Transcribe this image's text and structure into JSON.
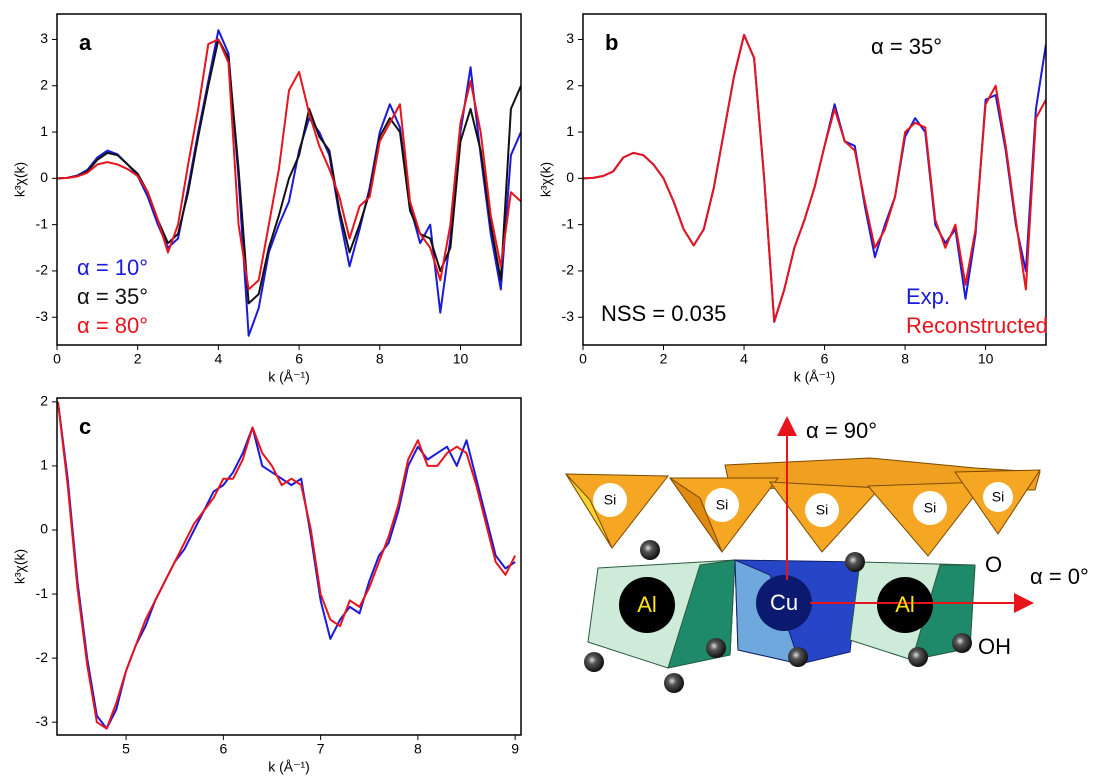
{
  "chart_data": [
    {
      "type": "line",
      "panel_label": "a",
      "y_label": "k³χ(k)",
      "x_label": "k (Å⁻¹)",
      "x": [
        0,
        0.25,
        0.5,
        0.75,
        1,
        1.25,
        1.5,
        1.75,
        2,
        2.25,
        2.5,
        2.75,
        3,
        3.25,
        3.5,
        3.75,
        4,
        4.25,
        4.5,
        4.75,
        5,
        5.25,
        5.5,
        5.75,
        6,
        6.25,
        6.5,
        6.75,
        7,
        7.25,
        7.5,
        7.75,
        8,
        8.25,
        8.5,
        8.75,
        9,
        9.25,
        9.5,
        9.75,
        10,
        10.25,
        10.5,
        10.75,
        11,
        11.25,
        11.5
      ],
      "series": [
        {
          "name": "α = 10°",
          "color": "#1a1adb",
          "values": [
            0,
            0.01,
            0.06,
            0.18,
            0.45,
            0.6,
            0.52,
            0.3,
            0.05,
            -0.4,
            -1.0,
            -1.5,
            -1.3,
            -0.2,
            1.0,
            2.1,
            3.2,
            2.7,
            0.0,
            -3.4,
            -2.8,
            -1.6,
            -1.0,
            -0.5,
            0.6,
            1.3,
            1.0,
            0.5,
            -0.8,
            -1.9,
            -1.1,
            -0.2,
            1.0,
            1.6,
            1.1,
            -0.6,
            -1.4,
            -1.0,
            -2.9,
            -1.3,
            1.0,
            2.4,
            0.5,
            -1.2,
            -2.4,
            0.5,
            1.0
          ]
        },
        {
          "name": "α = 35°",
          "color": "#111111",
          "values": [
            0,
            0.01,
            0.05,
            0.15,
            0.4,
            0.55,
            0.5,
            0.3,
            0.1,
            -0.3,
            -0.9,
            -1.4,
            -1.2,
            -0.3,
            0.9,
            2.0,
            3.0,
            2.6,
            0.2,
            -2.7,
            -2.5,
            -1.5,
            -0.8,
            0.0,
            0.5,
            1.5,
            0.9,
            0.6,
            -0.7,
            -1.6,
            -1.0,
            -0.3,
            0.9,
            1.3,
            1.0,
            -0.7,
            -1.2,
            -1.3,
            -2.0,
            -1.5,
            0.8,
            1.5,
            0.6,
            -1.0,
            -2.2,
            1.5,
            2.0
          ]
        },
        {
          "name": "α = 80°",
          "color": "#e8141c",
          "values": [
            0,
            0.01,
            0.04,
            0.12,
            0.3,
            0.35,
            0.3,
            0.2,
            0.05,
            -0.3,
            -0.9,
            -1.6,
            -1.0,
            0.3,
            1.5,
            2.9,
            3.0,
            2.5,
            -1.0,
            -2.4,
            -2.2,
            -1.0,
            0.2,
            1.9,
            2.3,
            1.4,
            0.7,
            0.2,
            -0.4,
            -1.3,
            -0.6,
            -0.4,
            0.8,
            1.2,
            1.6,
            -0.5,
            -1.2,
            -1.5,
            -2.2,
            -1.0,
            1.2,
            2.1,
            1.0,
            -0.8,
            -1.9,
            -0.3,
            -0.5
          ]
        }
      ],
      "legend": "lower left",
      "xlim": [
        0,
        11.5
      ],
      "ylim": [
        -3.6,
        3.55
      ],
      "xticks": [
        0,
        2,
        4,
        6,
        8,
        10
      ],
      "yticks": [
        -3,
        -2,
        -1,
        0,
        1,
        2,
        3
      ]
    },
    {
      "type": "line",
      "panel_label": "b",
      "y_label": "k³χ(k)",
      "x_label": "k (Å⁻¹)",
      "annotations": [
        "α = 35°",
        "NSS = 0.035"
      ],
      "x": [
        0,
        0.25,
        0.5,
        0.75,
        1,
        1.25,
        1.5,
        1.75,
        2,
        2.25,
        2.5,
        2.75,
        3,
        3.25,
        3.5,
        3.75,
        4,
        4.25,
        4.5,
        4.75,
        5,
        5.25,
        5.5,
        5.75,
        6,
        6.25,
        6.5,
        6.75,
        7,
        7.25,
        7.5,
        7.75,
        8,
        8.25,
        8.5,
        8.75,
        9,
        9.25,
        9.5,
        9.75,
        10,
        10.25,
        10.5,
        10.75,
        11,
        11.25,
        11.5
      ],
      "series": [
        {
          "name": "Exp.",
          "color": "#1a1adb",
          "values": [
            0,
            0.01,
            0.05,
            0.15,
            0.45,
            0.55,
            0.5,
            0.3,
            0.0,
            -0.5,
            -1.1,
            -1.45,
            -1.1,
            -0.2,
            1.0,
            2.2,
            3.1,
            2.6,
            0.0,
            -3.1,
            -2.4,
            -1.5,
            -0.9,
            -0.2,
            0.7,
            1.6,
            0.8,
            0.7,
            -0.6,
            -1.7,
            -1.0,
            -0.4,
            0.9,
            1.3,
            1.0,
            -1.0,
            -1.4,
            -1.1,
            -2.6,
            -1.2,
            1.7,
            1.8,
            0.6,
            -1.0,
            -2.0,
            1.5,
            2.9
          ]
        },
        {
          "name": "Reconstructed",
          "color": "#e8141c",
          "values": [
            0,
            0.01,
            0.05,
            0.15,
            0.45,
            0.55,
            0.5,
            0.3,
            0.0,
            -0.5,
            -1.1,
            -1.45,
            -1.1,
            -0.2,
            1.0,
            2.2,
            3.1,
            2.6,
            0.0,
            -3.1,
            -2.4,
            -1.5,
            -0.9,
            -0.2,
            0.7,
            1.5,
            0.8,
            0.6,
            -0.5,
            -1.5,
            -1.1,
            -0.4,
            1.0,
            1.2,
            1.1,
            -0.9,
            -1.5,
            -1.0,
            -2.3,
            -1.1,
            1.6,
            2.0,
            0.7,
            -0.9,
            -2.4,
            1.3,
            1.7
          ]
        }
      ],
      "legend": "lower right",
      "xlim": [
        0,
        11.5
      ],
      "ylim": [
        -3.6,
        3.55
      ],
      "xticks": [
        0,
        2,
        4,
        6,
        8,
        10
      ],
      "yticks": [
        -3,
        -2,
        -1,
        0,
        1,
        2,
        3
      ]
    },
    {
      "type": "line",
      "panel_label": "c",
      "y_label": "k³χ(k)",
      "x_label": "k (Å⁻¹)",
      "x": [
        4.3,
        4.4,
        4.5,
        4.6,
        4.7,
        4.8,
        4.9,
        5.0,
        5.1,
        5.2,
        5.3,
        5.4,
        5.5,
        5.6,
        5.7,
        5.8,
        5.9,
        6.0,
        6.1,
        6.2,
        6.3,
        6.4,
        6.5,
        6.6,
        6.7,
        6.8,
        6.9,
        7.0,
        7.1,
        7.2,
        7.3,
        7.4,
        7.5,
        7.6,
        7.7,
        7.8,
        7.9,
        8.0,
        8.1,
        8.2,
        8.3,
        8.4,
        8.5,
        8.6,
        8.7,
        8.8,
        8.9,
        9.0
      ],
      "series": [
        {
          "color": "#1a1adb",
          "values": [
            2.0,
            0.8,
            -0.8,
            -2.0,
            -2.9,
            -3.1,
            -2.8,
            -2.2,
            -1.8,
            -1.5,
            -1.1,
            -0.8,
            -0.5,
            -0.3,
            0.0,
            0.3,
            0.6,
            0.7,
            0.9,
            1.2,
            1.6,
            1.0,
            0.9,
            0.8,
            0.7,
            0.8,
            -0.1,
            -1.1,
            -1.7,
            -1.4,
            -1.2,
            -1.3,
            -0.8,
            -0.4,
            -0.2,
            0.3,
            1.0,
            1.3,
            1.1,
            1.2,
            1.3,
            1.0,
            1.4,
            0.8,
            0.2,
            -0.4,
            -0.6,
            -0.5
          ]
        },
        {
          "color": "#e8141c",
          "values": [
            2.0,
            0.7,
            -0.9,
            -2.1,
            -3.0,
            -3.1,
            -2.7,
            -2.2,
            -1.8,
            -1.4,
            -1.1,
            -0.8,
            -0.5,
            -0.2,
            0.1,
            0.3,
            0.5,
            0.8,
            0.8,
            1.1,
            1.6,
            1.2,
            1.0,
            0.7,
            0.8,
            0.7,
            0.0,
            -1.0,
            -1.4,
            -1.5,
            -1.1,
            -1.2,
            -0.9,
            -0.5,
            -0.1,
            0.4,
            1.1,
            1.4,
            1.0,
            1.0,
            1.2,
            1.3,
            1.2,
            0.7,
            0.1,
            -0.5,
            -0.7,
            -0.4
          ]
        }
      ],
      "xlim": [
        4.29,
        9.06
      ],
      "ylim": [
        -3.2,
        2.06
      ],
      "xticks": [
        5,
        6,
        7,
        8,
        9
      ],
      "yticks": [
        -3,
        -2,
        -1,
        0,
        1,
        2
      ]
    }
  ],
  "diagram": {
    "labels": [
      "Si",
      "Si",
      "Si",
      "Si",
      "Si",
      "Al",
      "Cu",
      "Al",
      "O",
      "OH",
      "α = 90°",
      "α = 0°"
    ]
  }
}
